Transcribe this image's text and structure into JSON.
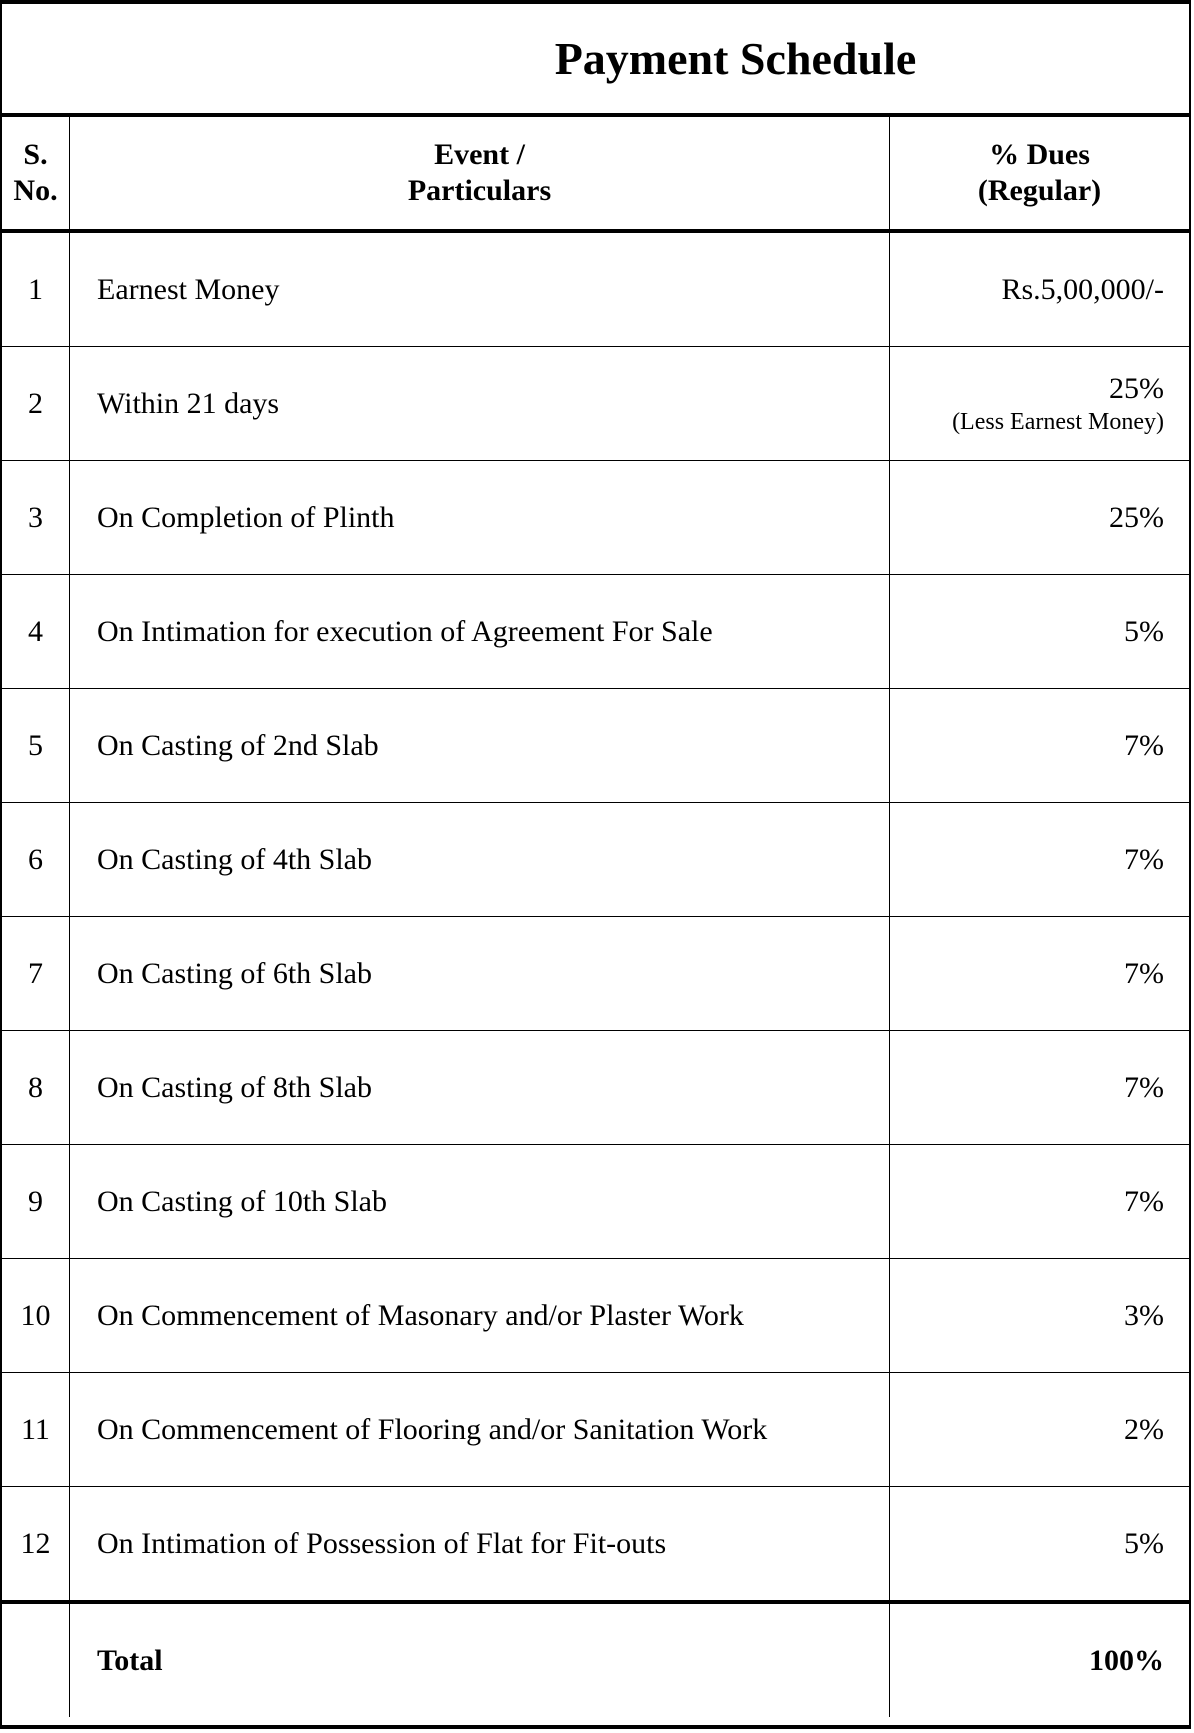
{
  "title": "Payment Schedule",
  "headers": {
    "sno_line1": "S.",
    "sno_line2": "No.",
    "event_line1": "Event /",
    "event_line2": "Particulars",
    "dues_line1": "% Dues",
    "dues_line2": "(Regular)"
  },
  "rows": [
    {
      "sno": "1",
      "event": "Earnest Money",
      "due": "Rs.5,00,000/-",
      "note": ""
    },
    {
      "sno": "2",
      "event": "Within 21 days",
      "due": "25%",
      "note": "(Less Earnest Money)"
    },
    {
      "sno": "3",
      "event": "On Completion of Plinth",
      "due": "25%",
      "note": ""
    },
    {
      "sno": "4",
      "event": "On Intimation for execution of Agreement For Sale",
      "due": "5%",
      "note": ""
    },
    {
      "sno": "5",
      "event": "On Casting of 2nd Slab",
      "due": "7%",
      "note": ""
    },
    {
      "sno": "6",
      "event": "On Casting of 4th Slab",
      "due": "7%",
      "note": ""
    },
    {
      "sno": "7",
      "event": "On Casting of 6th Slab",
      "due": "7%",
      "note": ""
    },
    {
      "sno": "8",
      "event": "On Casting of 8th Slab",
      "due": "7%",
      "note": ""
    },
    {
      "sno": "9",
      "event": "On Casting of 10th Slab",
      "due": "7%",
      "note": ""
    },
    {
      "sno": "10",
      "event": "On Commencement of Masonary and/or Plaster Work",
      "due": "3%",
      "note": ""
    },
    {
      "sno": "11",
      "event": "On Commencement of Flooring and/or Sanitation Work",
      "due": "2%",
      "note": ""
    },
    {
      "sno": "12",
      "event": "On Intimation of Possession of Flat for Fit-outs",
      "due": "5%",
      "note": ""
    }
  ],
  "total": {
    "label": "Total",
    "value": "100%"
  }
}
